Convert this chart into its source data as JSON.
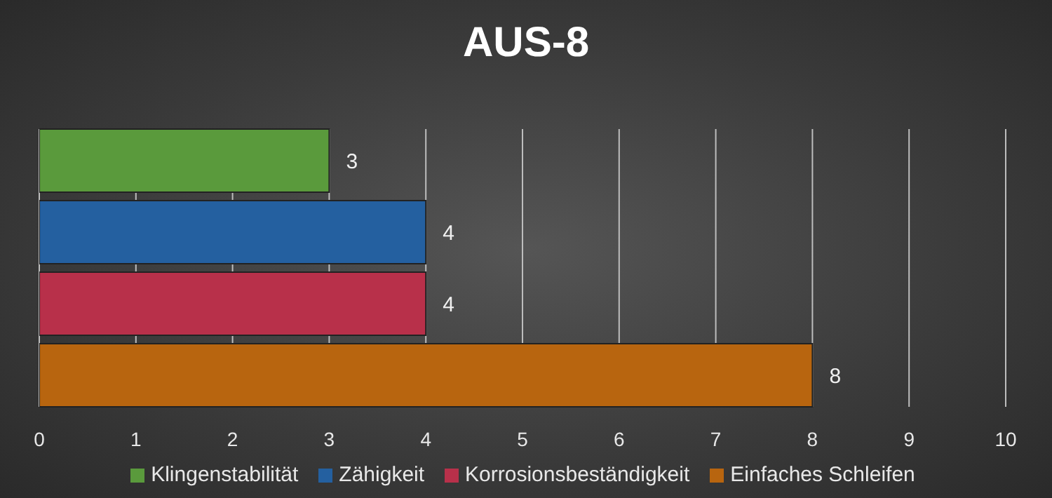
{
  "chart_data": {
    "type": "bar",
    "title": "AUS-8",
    "orientation": "horizontal",
    "categories": [
      null
    ],
    "series": [
      {
        "name": "Klingenstabilität",
        "color": "#5a9a3c",
        "values": [
          3
        ]
      },
      {
        "name": "Zähigkeit",
        "color": "#2460a0",
        "values": [
          4
        ]
      },
      {
        "name": "Korrosionsbeständigkeit",
        "color": "#b8304a",
        "values": [
          4
        ]
      },
      {
        "name": "Einfaches Schleifen",
        "color": "#b8650f",
        "values": [
          8
        ]
      }
    ],
    "xlim": [
      0,
      10
    ],
    "xticks": [
      0,
      1,
      2,
      3,
      4,
      5,
      6,
      7,
      8,
      9,
      10
    ],
    "grid": "x",
    "legend": "bottom",
    "data_labels": true
  }
}
